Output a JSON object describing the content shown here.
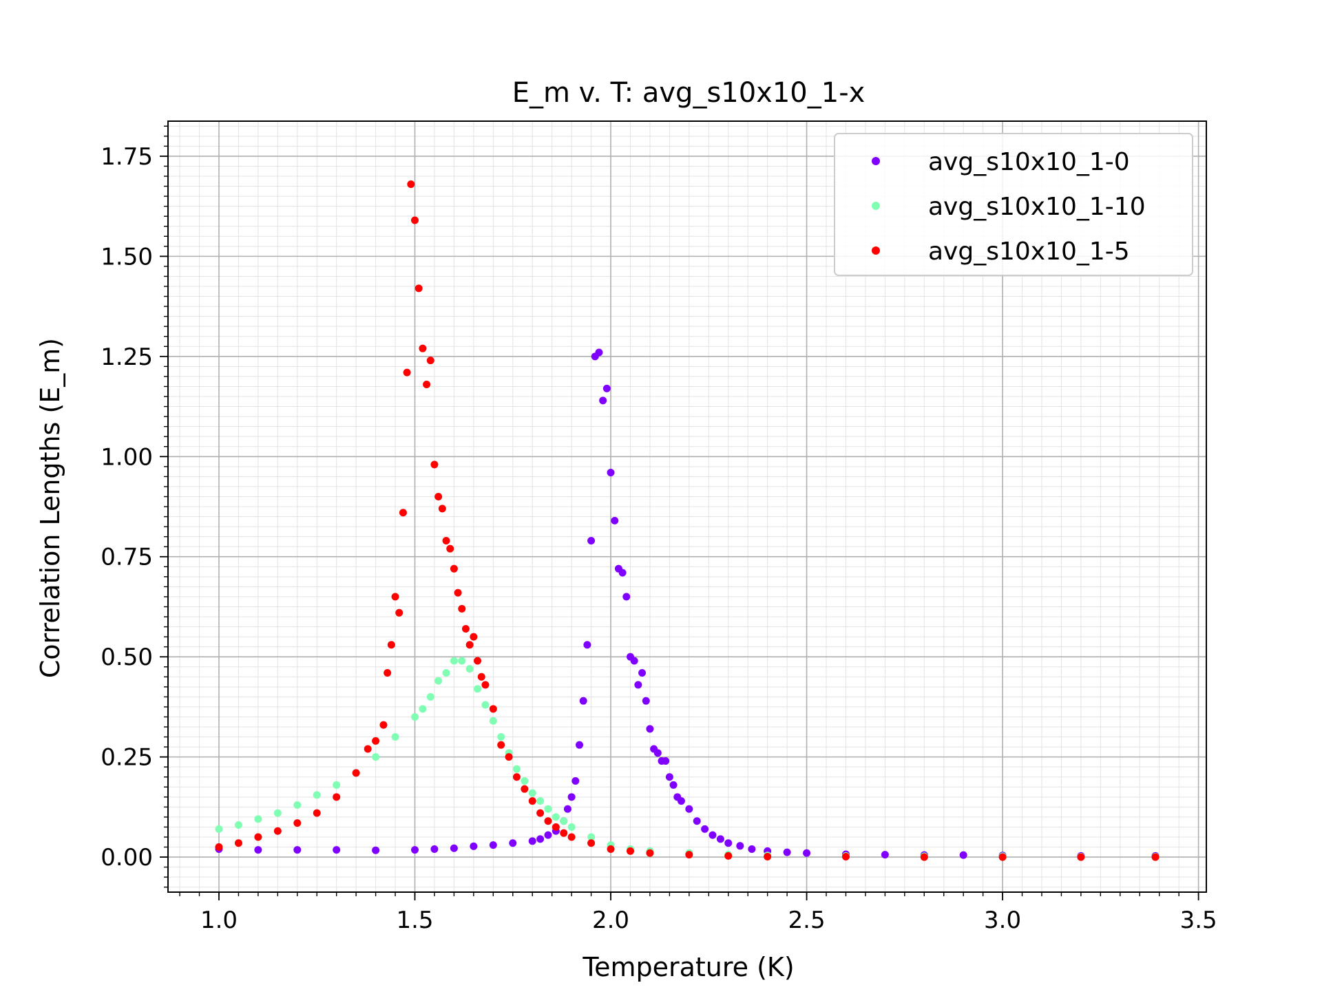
{
  "chart_data": {
    "type": "scatter",
    "title": "E_m v. T: avg_s10x10_1-x",
    "xlabel": "Temperature (K)",
    "ylabel": "Correlation Lengths (E_m)",
    "xlim": [
      0.87,
      3.52
    ],
    "ylim": [
      -0.0875,
      1.8375
    ],
    "x_ticks": [
      1.0,
      1.5,
      2.0,
      2.5,
      3.0,
      3.5
    ],
    "x_tick_labels": [
      "1.0",
      "1.5",
      "2.0",
      "2.5",
      "3.0",
      "3.5"
    ],
    "y_ticks": [
      0.0,
      0.25,
      0.5,
      0.75,
      1.0,
      1.25,
      1.5,
      1.75
    ],
    "y_tick_labels": [
      "0.00",
      "0.25",
      "0.50",
      "0.75",
      "1.00",
      "1.25",
      "1.50",
      "1.75"
    ],
    "grid": true,
    "minor_grid": true,
    "legend_position": "top-right",
    "series": [
      {
        "name": "avg_s10x10_1-0",
        "color": "#8000ff",
        "points": [
          [
            1.0,
            0.02
          ],
          [
            1.1,
            0.018
          ],
          [
            1.2,
            0.018
          ],
          [
            1.3,
            0.018
          ],
          [
            1.4,
            0.017
          ],
          [
            1.5,
            0.018
          ],
          [
            1.55,
            0.02
          ],
          [
            1.6,
            0.022
          ],
          [
            1.65,
            0.027
          ],
          [
            1.7,
            0.03
          ],
          [
            1.75,
            0.035
          ],
          [
            1.8,
            0.04
          ],
          [
            1.82,
            0.045
          ],
          [
            1.84,
            0.055
          ],
          [
            1.86,
            0.065
          ],
          [
            1.88,
            0.09
          ],
          [
            1.89,
            0.12
          ],
          [
            1.9,
            0.15
          ],
          [
            1.91,
            0.19
          ],
          [
            1.92,
            0.28
          ],
          [
            1.93,
            0.39
          ],
          [
            1.94,
            0.53
          ],
          [
            1.95,
            0.79
          ],
          [
            1.96,
            1.25
          ],
          [
            1.97,
            1.26
          ],
          [
            1.98,
            1.14
          ],
          [
            1.99,
            1.17
          ],
          [
            2.0,
            0.96
          ],
          [
            2.01,
            0.84
          ],
          [
            2.02,
            0.72
          ],
          [
            2.03,
            0.71
          ],
          [
            2.04,
            0.65
          ],
          [
            2.05,
            0.5
          ],
          [
            2.06,
            0.49
          ],
          [
            2.07,
            0.43
          ],
          [
            2.08,
            0.46
          ],
          [
            2.09,
            0.39
          ],
          [
            2.1,
            0.32
          ],
          [
            2.11,
            0.27
          ],
          [
            2.12,
            0.26
          ],
          [
            2.13,
            0.24
          ],
          [
            2.14,
            0.24
          ],
          [
            2.15,
            0.2
          ],
          [
            2.16,
            0.18
          ],
          [
            2.17,
            0.15
          ],
          [
            2.18,
            0.14
          ],
          [
            2.2,
            0.12
          ],
          [
            2.22,
            0.09
          ],
          [
            2.24,
            0.07
          ],
          [
            2.26,
            0.055
          ],
          [
            2.28,
            0.045
          ],
          [
            2.3,
            0.035
          ],
          [
            2.33,
            0.028
          ],
          [
            2.36,
            0.02
          ],
          [
            2.4,
            0.015
          ],
          [
            2.45,
            0.012
          ],
          [
            2.5,
            0.01
          ],
          [
            2.6,
            0.007
          ],
          [
            2.7,
            0.006
          ],
          [
            2.8,
            0.005
          ],
          [
            2.9,
            0.005
          ],
          [
            3.0,
            0.004
          ],
          [
            3.2,
            0.003
          ],
          [
            3.39,
            0.003
          ]
        ]
      },
      {
        "name": "avg_s10x10_1-10",
        "color": "#80ffb4",
        "points": [
          [
            1.0,
            0.07
          ],
          [
            1.05,
            0.08
          ],
          [
            1.1,
            0.095
          ],
          [
            1.15,
            0.11
          ],
          [
            1.2,
            0.13
          ],
          [
            1.25,
            0.155
          ],
          [
            1.3,
            0.18
          ],
          [
            1.35,
            0.21
          ],
          [
            1.4,
            0.25
          ],
          [
            1.45,
            0.3
          ],
          [
            1.5,
            0.35
          ],
          [
            1.52,
            0.37
          ],
          [
            1.54,
            0.4
          ],
          [
            1.56,
            0.44
          ],
          [
            1.58,
            0.46
          ],
          [
            1.6,
            0.49
          ],
          [
            1.62,
            0.49
          ],
          [
            1.64,
            0.47
          ],
          [
            1.66,
            0.42
          ],
          [
            1.68,
            0.38
          ],
          [
            1.7,
            0.34
          ],
          [
            1.72,
            0.3
          ],
          [
            1.74,
            0.26
          ],
          [
            1.76,
            0.22
          ],
          [
            1.78,
            0.19
          ],
          [
            1.8,
            0.16
          ],
          [
            1.82,
            0.14
          ],
          [
            1.84,
            0.12
          ],
          [
            1.86,
            0.1
          ],
          [
            1.88,
            0.09
          ],
          [
            1.9,
            0.075
          ],
          [
            1.95,
            0.05
          ],
          [
            2.0,
            0.03
          ],
          [
            2.05,
            0.02
          ],
          [
            2.1,
            0.015
          ],
          [
            2.2,
            0.01
          ],
          [
            2.3,
            0.006
          ],
          [
            2.4,
            0.004
          ],
          [
            2.6,
            0.003
          ],
          [
            2.8,
            0.002
          ],
          [
            3.0,
            0.002
          ],
          [
            3.2,
            0.001
          ],
          [
            3.39,
            0.001
          ]
        ]
      },
      {
        "name": "avg_s10x10_1-5",
        "color": "#ff0000",
        "points": [
          [
            1.0,
            0.025
          ],
          [
            1.05,
            0.035
          ],
          [
            1.1,
            0.05
          ],
          [
            1.15,
            0.065
          ],
          [
            1.2,
            0.085
          ],
          [
            1.25,
            0.11
          ],
          [
            1.3,
            0.15
          ],
          [
            1.35,
            0.21
          ],
          [
            1.38,
            0.27
          ],
          [
            1.4,
            0.29
          ],
          [
            1.42,
            0.33
          ],
          [
            1.43,
            0.46
          ],
          [
            1.44,
            0.53
          ],
          [
            1.45,
            0.65
          ],
          [
            1.46,
            0.61
          ],
          [
            1.47,
            0.86
          ],
          [
            1.48,
            1.21
          ],
          [
            1.49,
            1.68
          ],
          [
            1.5,
            1.59
          ],
          [
            1.51,
            1.42
          ],
          [
            1.52,
            1.27
          ],
          [
            1.53,
            1.18
          ],
          [
            1.54,
            1.24
          ],
          [
            1.55,
            0.98
          ],
          [
            1.56,
            0.9
          ],
          [
            1.57,
            0.87
          ],
          [
            1.58,
            0.79
          ],
          [
            1.59,
            0.77
          ],
          [
            1.6,
            0.72
          ],
          [
            1.61,
            0.66
          ],
          [
            1.62,
            0.62
          ],
          [
            1.63,
            0.57
          ],
          [
            1.64,
            0.53
          ],
          [
            1.65,
            0.55
          ],
          [
            1.66,
            0.49
          ],
          [
            1.67,
            0.45
          ],
          [
            1.68,
            0.43
          ],
          [
            1.7,
            0.37
          ],
          [
            1.72,
            0.28
          ],
          [
            1.74,
            0.25
          ],
          [
            1.76,
            0.2
          ],
          [
            1.78,
            0.17
          ],
          [
            1.8,
            0.14
          ],
          [
            1.82,
            0.11
          ],
          [
            1.84,
            0.09
          ],
          [
            1.86,
            0.075
          ],
          [
            1.88,
            0.06
          ],
          [
            1.9,
            0.05
          ],
          [
            1.95,
            0.035
          ],
          [
            2.0,
            0.02
          ],
          [
            2.05,
            0.015
          ],
          [
            2.1,
            0.01
          ],
          [
            2.2,
            0.006
          ],
          [
            2.3,
            0.003
          ],
          [
            2.4,
            0.001
          ],
          [
            2.6,
            0.001
          ],
          [
            2.8,
            0.0
          ],
          [
            3.0,
            0.0
          ],
          [
            3.2,
            0.0
          ],
          [
            3.39,
            0.0
          ]
        ]
      }
    ]
  }
}
